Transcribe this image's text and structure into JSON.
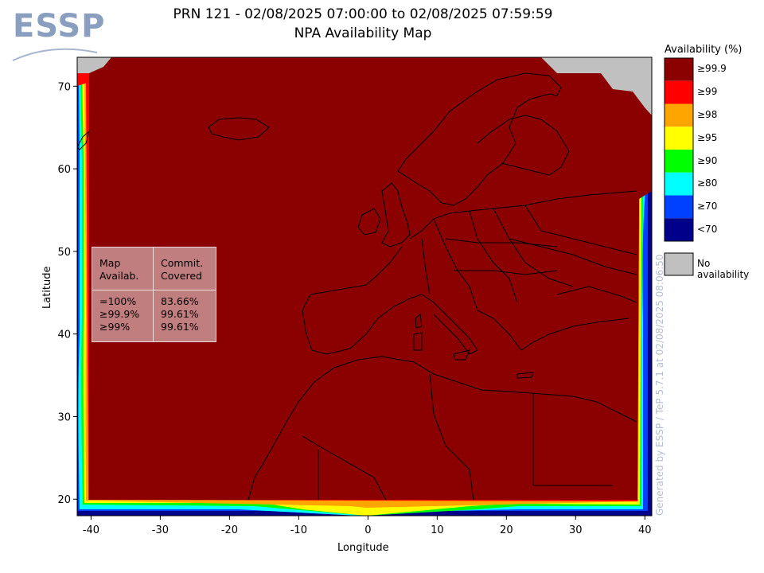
{
  "logo": {
    "text": "ESSP"
  },
  "title": {
    "line1": "PRN 121 - 02/08/2025 07:00:00 to 02/08/2025 07:59:59",
    "line2": "NPA Availability Map"
  },
  "axes": {
    "xlabel": "Longitude",
    "ylabel": "Latitude",
    "x_ticks": [
      -40,
      -30,
      -20,
      -10,
      0,
      10,
      20,
      30,
      40
    ],
    "y_ticks": [
      20,
      30,
      40,
      50,
      60,
      70
    ],
    "xlim": [
      -42,
      41
    ],
    "ylim": [
      18,
      73.5
    ]
  },
  "legend": {
    "title": "Availability (%)",
    "items": [
      {
        "label": "≥99.9",
        "color": "#8b0000"
      },
      {
        "label": "≥99",
        "color": "#ff0000"
      },
      {
        "label": "≥98",
        "color": "#ffa500"
      },
      {
        "label": "≥95",
        "color": "#ffff00"
      },
      {
        "label": "≥90",
        "color": "#00ff00"
      },
      {
        "label": "≥80",
        "color": "#00ffff"
      },
      {
        "label": "≥70",
        "color": "#0040ff"
      },
      {
        "label": "<70",
        "color": "#00008b"
      }
    ],
    "no_data": {
      "label": "No availability",
      "color": "#c0c0c0"
    }
  },
  "stats": {
    "col1_header": [
      "Map",
      "Availab."
    ],
    "col2_header": [
      "Commit.",
      "Covered"
    ],
    "rows": [
      {
        "label": "=100%",
        "value": "83.66%"
      },
      {
        "label": "≥99.9%",
        "value": "99.61%"
      },
      {
        "label": "≥99%",
        "value": "99.61%"
      }
    ]
  },
  "credit": "Generated by ESSP / TeP 5.7.1 at 02/08/2025 08:06:50"
}
